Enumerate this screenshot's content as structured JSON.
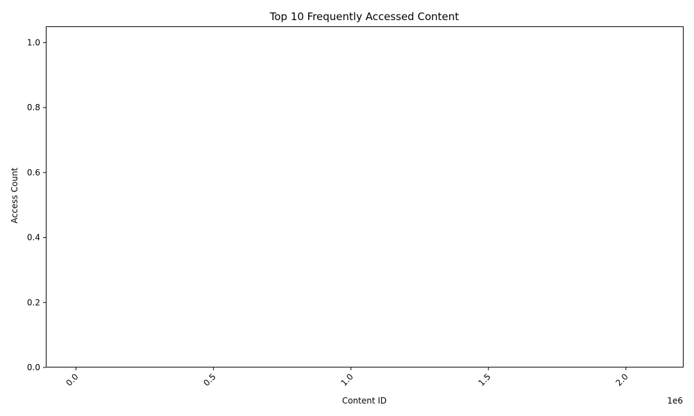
{
  "chart_data": {
    "type": "bar",
    "title": "Top 10 Frequently Accessed Content",
    "xlabel": "Content ID",
    "ylabel": "Access Count",
    "x_offset_label": "1e6",
    "xlim": [
      -0.11,
      2.21
    ],
    "ylim": [
      0,
      1.05
    ],
    "x_ticks": [
      {
        "value": 0.0,
        "label": "0.0"
      },
      {
        "value": 0.5,
        "label": "0.5"
      },
      {
        "value": 1.0,
        "label": "1.0"
      },
      {
        "value": 1.5,
        "label": "1.5"
      },
      {
        "value": 2.0,
        "label": "2.0"
      }
    ],
    "y_ticks": [
      {
        "value": 0.0,
        "label": "0.0"
      },
      {
        "value": 0.2,
        "label": "0.2"
      },
      {
        "value": 0.4,
        "label": "0.4"
      },
      {
        "value": 0.6,
        "label": "0.6"
      },
      {
        "value": 0.8,
        "label": "0.8"
      },
      {
        "value": 1.0,
        "label": "1.0"
      }
    ],
    "grid": false,
    "categories": [],
    "values": []
  }
}
